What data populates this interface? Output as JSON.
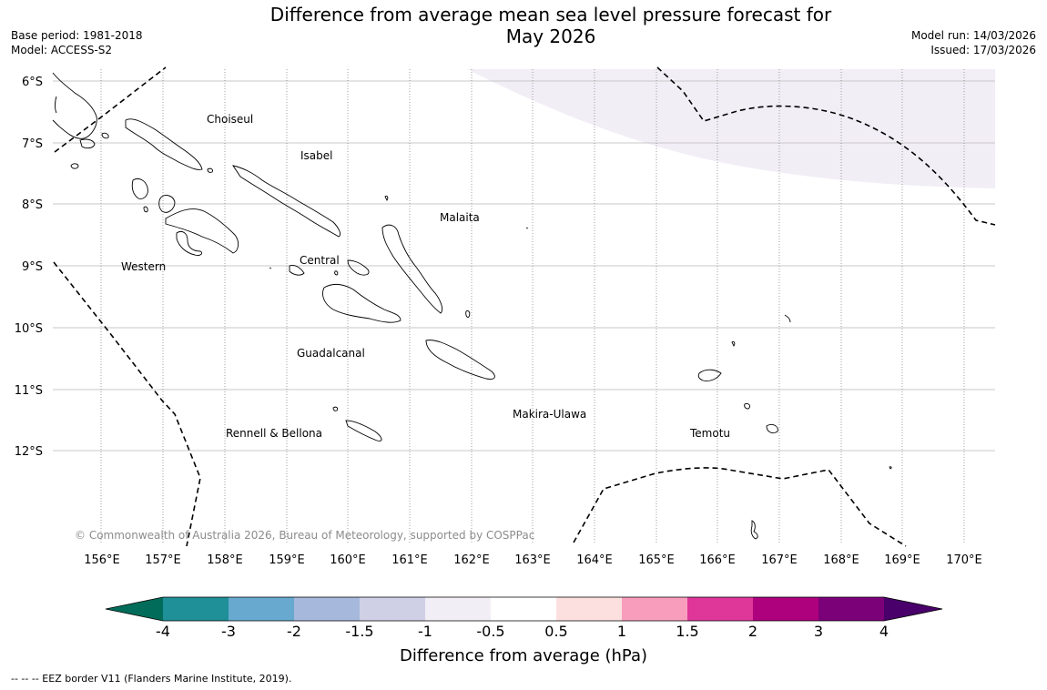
{
  "title_line1": "Difference from average mean sea level pressure forecast for",
  "title_line2": "May 2026",
  "base_period": "Base period: 1981-2018",
  "model": "Model: ACCESS-S2",
  "model_run": "Model run: 14/03/2026",
  "issued": "Issued: 17/03/2026",
  "lat_labels": [
    "6°S",
    "7°S",
    "8°S",
    "9°S",
    "10°S",
    "11°S",
    "12°S"
  ],
  "lon_labels": [
    "156°E",
    "157°E",
    "158°E",
    "159°E",
    "160°E",
    "161°E",
    "162°E",
    "163°E",
    "164°E",
    "165°E",
    "166°E",
    "167°E",
    "168°E",
    "169°E",
    "170°E"
  ],
  "provinces": [
    "Choiseul",
    "Isabel",
    "Malaita",
    "Western",
    "Central",
    "Guadalcanal",
    "Makira-Ulawa",
    "Rennell & Bellona",
    "Temotu"
  ],
  "copyright": "© Commonwealth of Australia 2026, Bureau of Meteorology, supported by COSPPac",
  "colorbar": {
    "ticks": [
      "-4",
      "-3",
      "-2",
      "-1.5",
      "-1",
      "-0.5",
      "0.5",
      "1",
      "1.5",
      "2",
      "3",
      "4"
    ],
    "colors": [
      "#1f8f98",
      "#67a9cf",
      "#a6b9dc",
      "#cfd0e6",
      "#f2eef6",
      "#ffffff",
      "#fcdfdf",
      "#f99dbd",
      "#de3699",
      "#ae017e",
      "#7a0177"
    ],
    "under_color": "#016c59",
    "over_color": "#49006a",
    "label": "Difference from average (hPa)"
  },
  "legend_note": "--  --  -- EEZ border V11 (Flanders Marine Institute, 2019)."
}
